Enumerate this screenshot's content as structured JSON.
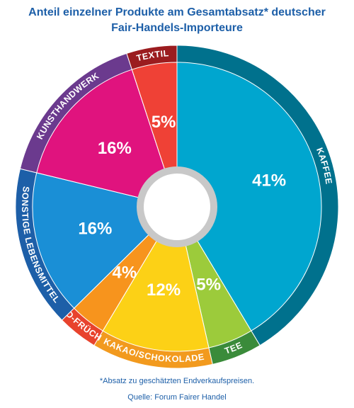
{
  "chart_data": {
    "type": "pie",
    "title": [
      "Anteil einzelner Produkte am Gesamtabsatz* deutscher",
      "Fair-Handels-Importeure"
    ],
    "categories": [
      "KAFFEE",
      "TEE",
      "KAKAO/SCHOKOLADE",
      "SÜD-FRÜCHTE",
      "SONSTIGE LEBENSMITTEL",
      "KUNSTHANDWERK",
      "TEXTIL"
    ],
    "values": [
      41,
      5,
      12,
      4,
      16,
      16,
      5
    ],
    "value_labels": [
      "41%",
      "5%",
      "12%",
      "4%",
      "16%",
      "16%",
      "5%"
    ],
    "colors": [
      "#00a6cf",
      "#9ccb3b",
      "#fcd116",
      "#f7941d",
      "#1a8fd6",
      "#e0137e",
      "#ef4136"
    ],
    "ring_colors": [
      "#00718d",
      "#3a8b3a",
      "#f29a1e",
      "#e8432d",
      "#1d5fa8",
      "#6b3a8e",
      "#9b1c1f"
    ],
    "footnote": "*Absatz zu geschätzten Endverkaufspreisen.",
    "source": "Quelle: Forum Fairer Handel"
  }
}
